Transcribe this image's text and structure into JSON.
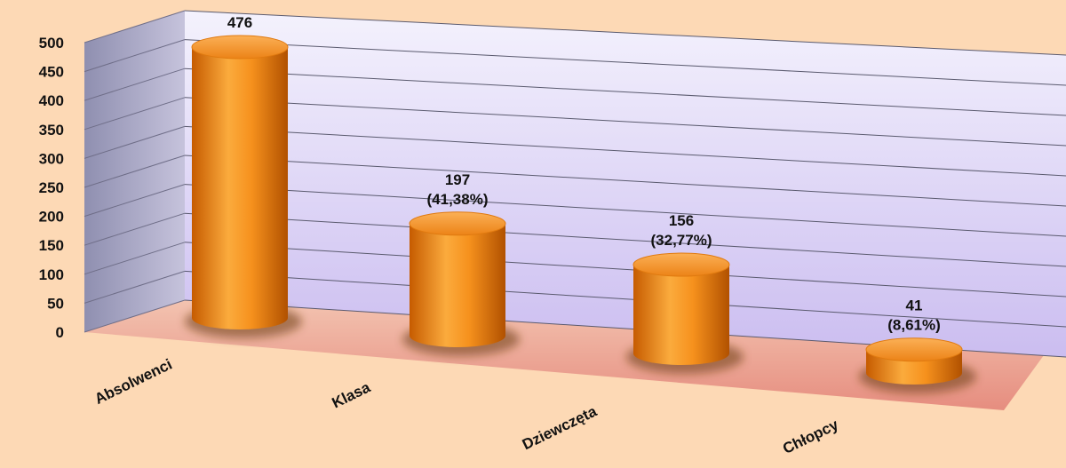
{
  "chart_data": {
    "type": "bar",
    "title": "",
    "xlabel": "",
    "ylabel": "",
    "categories": [
      "Absolwenci",
      "Klasa",
      "Dziewczęta",
      "Chłopcy"
    ],
    "values": [
      476,
      197,
      156,
      41
    ],
    "data_labels": [
      [
        "476"
      ],
      [
        "197",
        "(41,38%)"
      ],
      [
        "156",
        "(32,77%)"
      ],
      [
        "41",
        "(8,61%)"
      ]
    ],
    "yticks": [
      "0",
      "50",
      "100",
      "150",
      "200",
      "250",
      "300",
      "350",
      "400",
      "450",
      "500"
    ],
    "ylim": [
      0,
      500
    ],
    "grid": true,
    "legend": "none",
    "style": "3d-cylinder",
    "colors": {
      "bar": "#f08a1c",
      "bar_top": "#f6a84a",
      "wall": "#dcd3f5",
      "floor": "#f2b7a6",
      "background": "#fdd9b5"
    }
  }
}
